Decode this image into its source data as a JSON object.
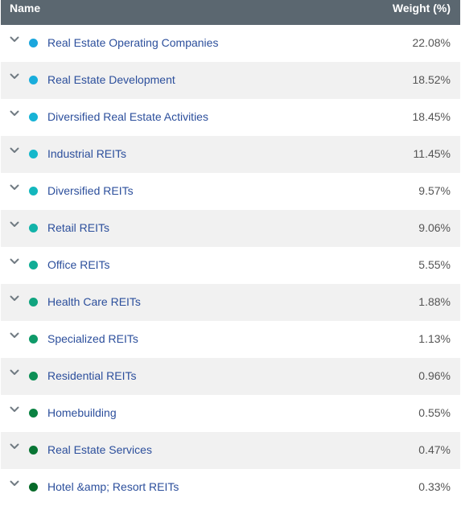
{
  "header": {
    "name_label": "Name",
    "weight_label": "Weight (%)"
  },
  "rows": [
    {
      "name": "Real Estate Operating Companies",
      "weight": "22.08%",
      "color": "#1ba6dd"
    },
    {
      "name": "Real Estate Development",
      "weight": "18.52%",
      "color": "#19addc"
    },
    {
      "name": "Diversified Real Estate Activities",
      "weight": "18.45%",
      "color": "#17b3d6"
    },
    {
      "name": "Industrial REITs",
      "weight": "11.45%",
      "color": "#15b8cb"
    },
    {
      "name": "Diversified REITs",
      "weight": "9.57%",
      "color": "#13b7bd"
    },
    {
      "name": "Retail REITs",
      "weight": "9.06%",
      "color": "#12b3a9"
    },
    {
      "name": "Office REITs",
      "weight": "5.55%",
      "color": "#11ad96"
    },
    {
      "name": "Health Care REITs",
      "weight": "1.88%",
      "color": "#10a47f"
    },
    {
      "name": "Specialized REITs",
      "weight": "1.13%",
      "color": "#0e9a69"
    },
    {
      "name": "Residential REITs",
      "weight": "0.96%",
      "color": "#0c8f55"
    },
    {
      "name": "Homebuilding",
      "weight": "0.55%",
      "color": "#0a8242"
    },
    {
      "name": "Real Estate Services",
      "weight": "0.47%",
      "color": "#087534"
    },
    {
      "name": "Hotel &amp; Resort REITs",
      "weight": "0.33%",
      "color": "#066a29"
    }
  ],
  "icons": {
    "expand": "chevron-down-icon",
    "marker": "dot-icon"
  }
}
